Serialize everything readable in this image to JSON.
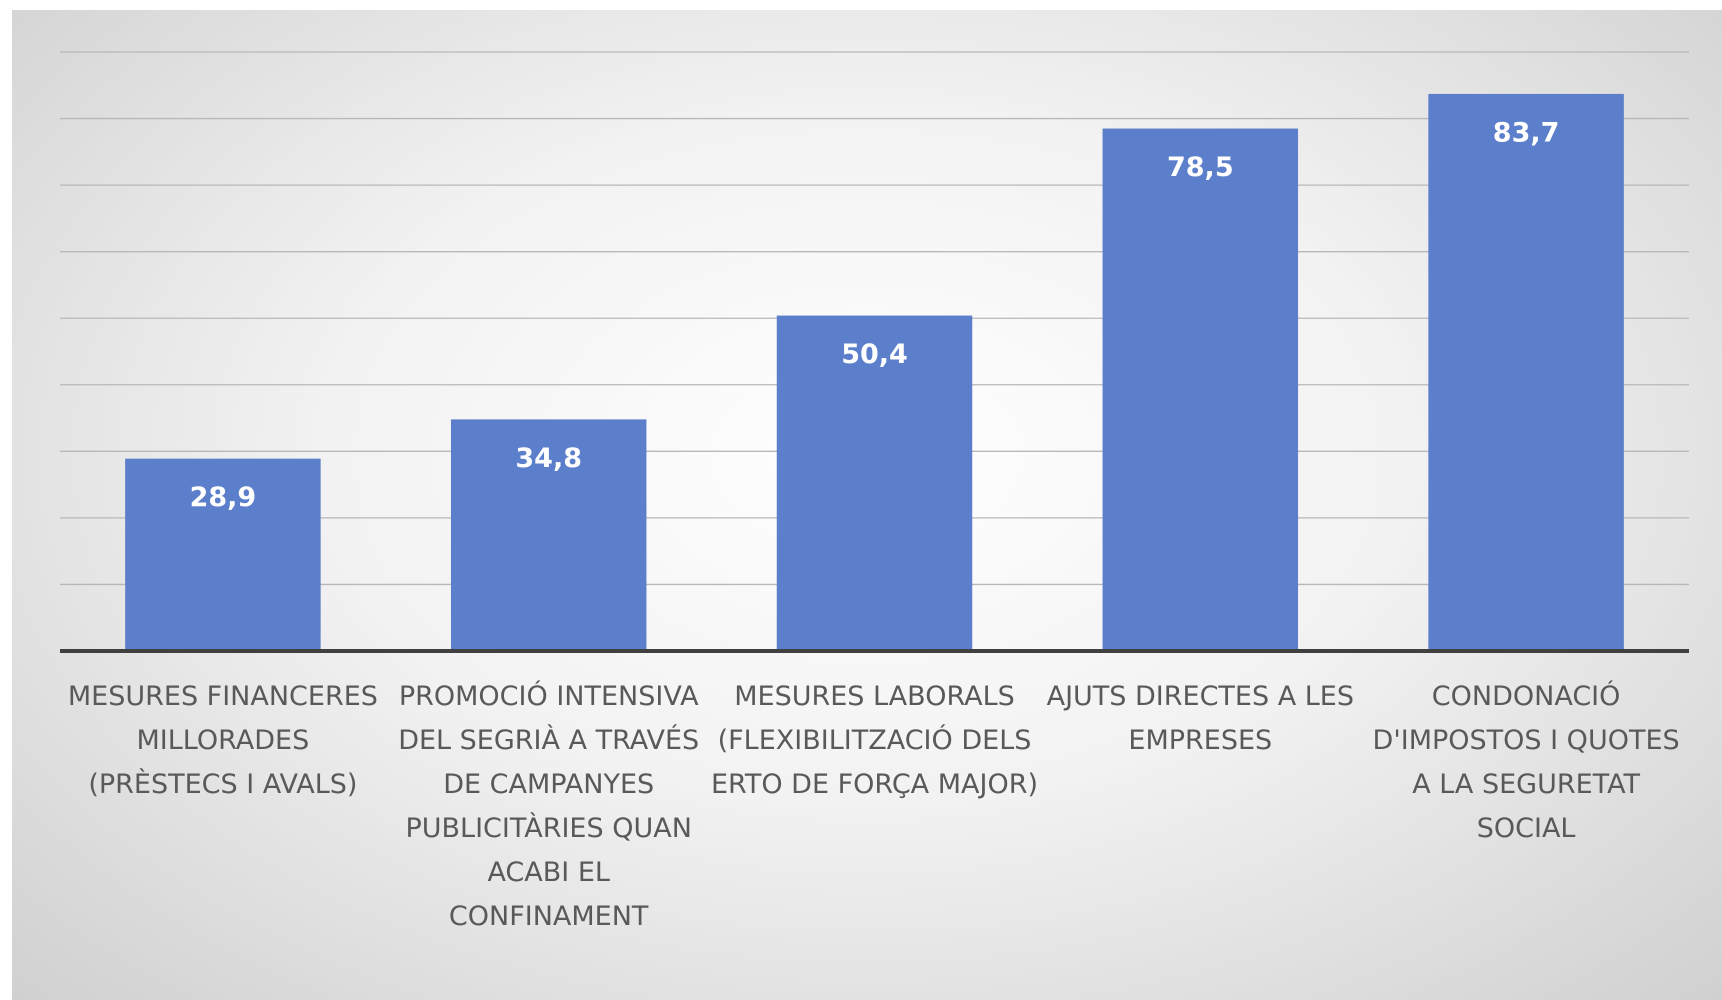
{
  "chart_data": {
    "type": "bar",
    "categories": [
      "MESURES FINANCERES MILLORADES (PRÈSTECS I AVALS)",
      "PROMOCIÓ INTENSIVA DEL SEGRIÀ A TRAVÉS DE CAMPANYES PUBLICITÀRIES QUAN ACABI EL CONFINAMENT",
      "MESURES LABORALS (FLEXIBILITZACIÓ DELS ERTO DE FORÇA MAJOR)",
      "AJUTS DIRECTES A LES EMPRESES",
      "CONDONACIÓ D'IMPOSTOS I QUOTES A LA SEGURETAT SOCIAL"
    ],
    "values": [
      28.9,
      34.8,
      50.4,
      78.5,
      83.7
    ],
    "value_labels": [
      "28,9",
      "34,8",
      "50,4",
      "78,5",
      "83,7"
    ],
    "color": "#5b7fcb",
    "ylim": [
      0,
      90
    ],
    "yticks": [
      0,
      10,
      20,
      30,
      40,
      50,
      60,
      70,
      80,
      90
    ],
    "grid": true
  }
}
